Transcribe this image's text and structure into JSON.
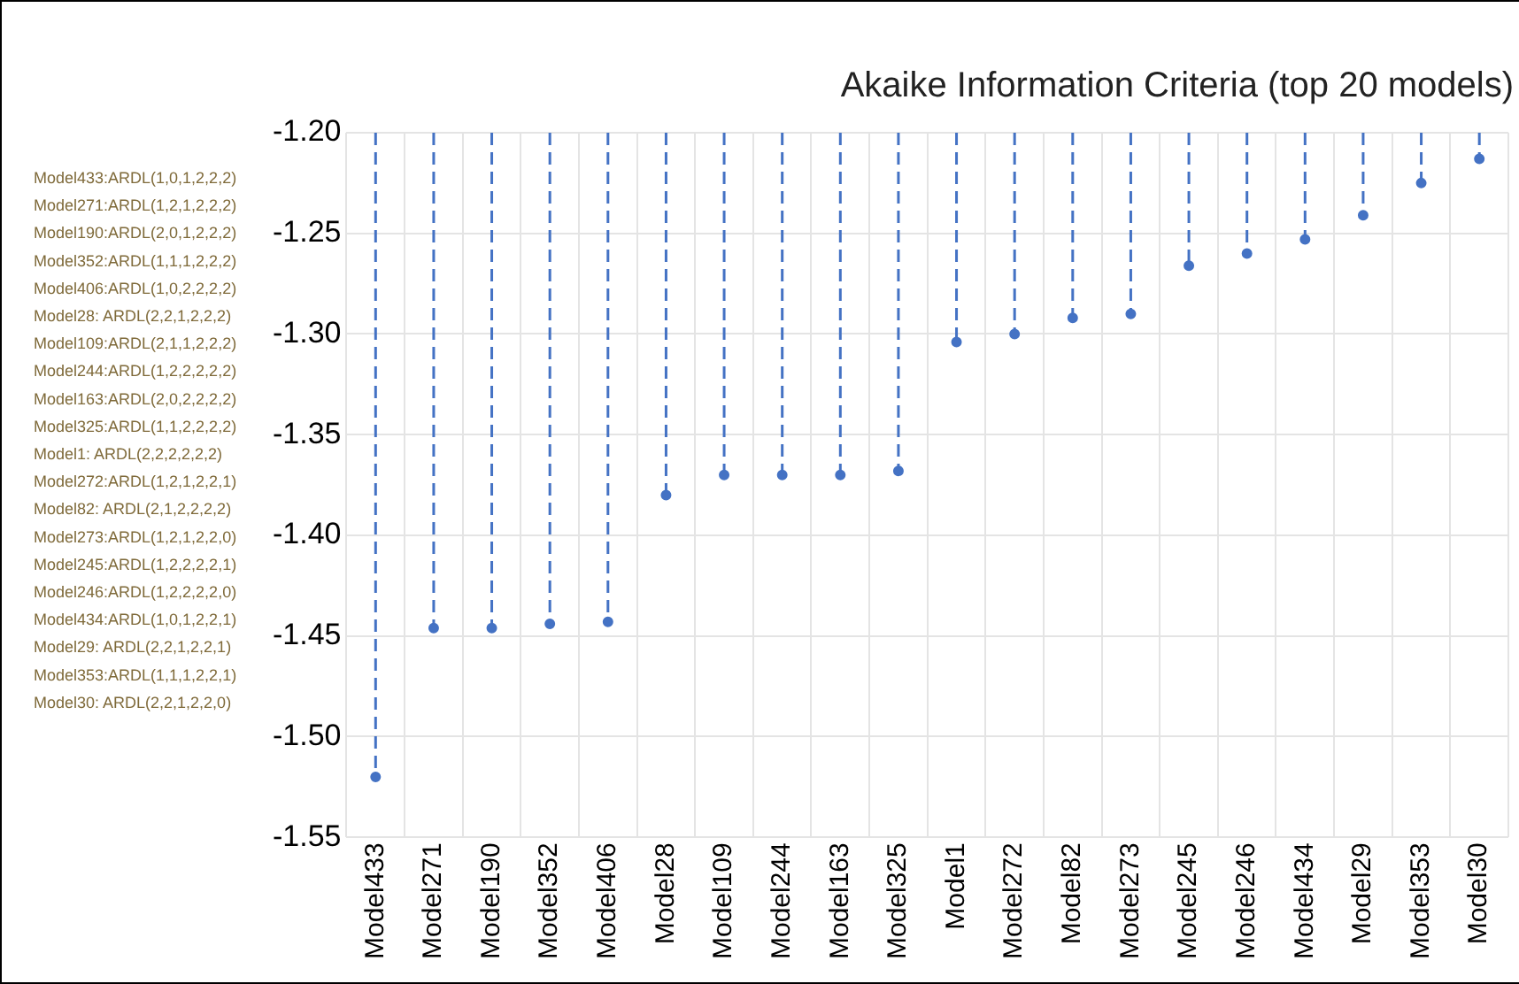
{
  "chart_data": {
    "type": "lollipop",
    "title": "Akaike Information Criteria (top 20 models)",
    "categories": [
      "Model433",
      "Model271",
      "Model190",
      "Model352",
      "Model406",
      "Model28",
      "Model109",
      "Model244",
      "Model163",
      "Model325",
      "Model1",
      "Model272",
      "Model82",
      "Model273",
      "Model245",
      "Model246",
      "Model434",
      "Model29",
      "Model353",
      "Model30"
    ],
    "values": [
      -1.52,
      -1.446,
      -1.446,
      -1.444,
      -1.443,
      -1.38,
      -1.37,
      -1.37,
      -1.37,
      -1.368,
      -1.304,
      -1.3,
      -1.292,
      -1.29,
      -1.266,
      -1.26,
      -1.253,
      -1.241,
      -1.225,
      -1.213
    ],
    "color": "#4472c4",
    "ylim": [
      -1.55,
      -1.2
    ],
    "yticks": [
      {
        "value": -1.55,
        "label": "-1.55"
      },
      {
        "value": -1.5,
        "label": "-1.50"
      },
      {
        "value": -1.45,
        "label": "-1.45"
      },
      {
        "value": -1.4,
        "label": "-1.40"
      },
      {
        "value": -1.35,
        "label": "-1.35"
      },
      {
        "value": -1.3,
        "label": "-1.30"
      },
      {
        "value": -1.25,
        "label": "-1.25"
      },
      {
        "value": -1.2,
        "label": "-1.20"
      }
    ],
    "grid": true,
    "marker": "circle",
    "line_style": "dashed",
    "annotations": [
      "Model433:ARDL(1,0,1,2,2,2)",
      "Model271:ARDL(1,2,1,2,2,2)",
      "Model190:ARDL(2,0,1,2,2,2)",
      "Model352:ARDL(1,1,1,2,2,2)",
      "Model406:ARDL(1,0,2,2,2,2)",
      "Model28: ARDL(2,2,1,2,2,2)",
      "Model109:ARDL(2,1,1,2,2,2)",
      "Model244:ARDL(1,2,2,2,2,2)",
      "Model163:ARDL(2,0,2,2,2,2)",
      "Model325:ARDL(1,1,2,2,2,2)",
      "Model1: ARDL(2,2,2,2,2,2)",
      "Model272:ARDL(1,2,1,2,2,1)",
      "Model82: ARDL(2,1,2,2,2,2)",
      "Model273:ARDL(1,2,1,2,2,0)",
      "Model245:ARDL(1,2,2,2,2,1)",
      "Model246:ARDL(1,2,2,2,2,0)",
      "Model434:ARDL(1,0,1,2,2,1)",
      "Model29: ARDL(2,2,1,2,2,1)",
      "Model353:ARDL(1,1,1,2,2,1)",
      "Model30: ARDL(2,2,1,2,2,0)"
    ]
  }
}
